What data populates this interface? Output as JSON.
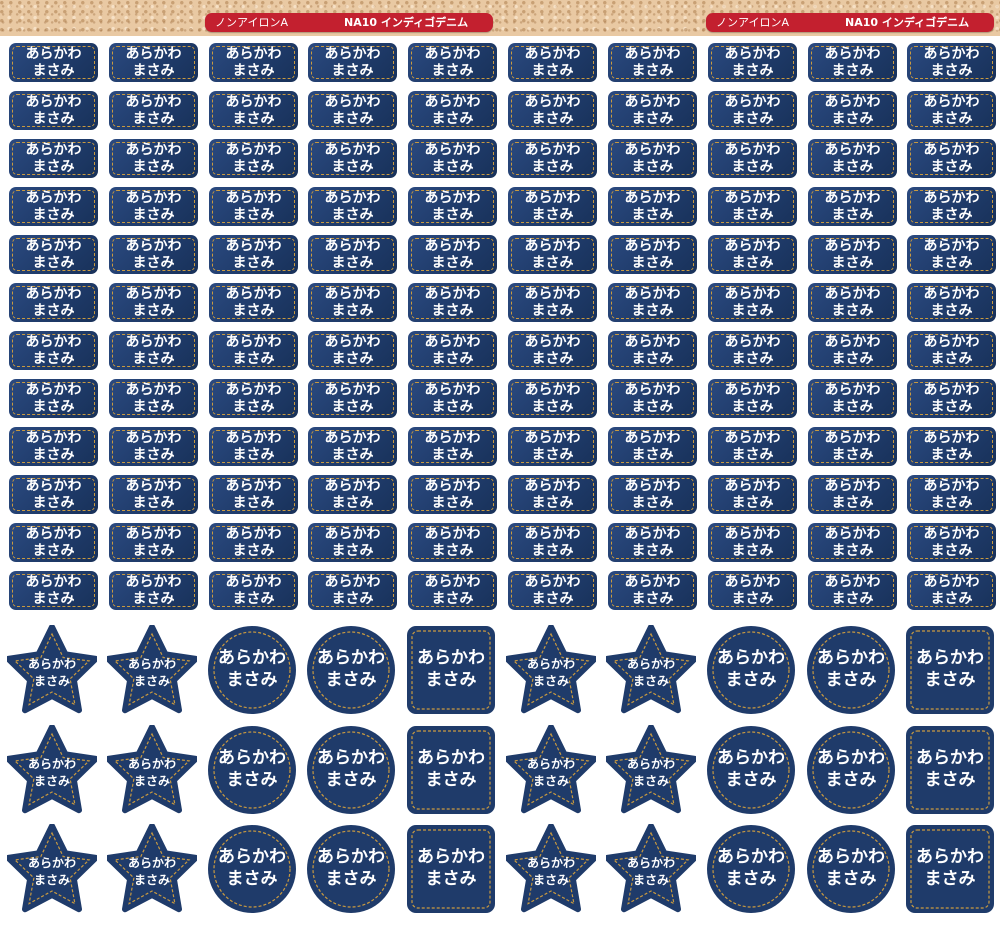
{
  "header": {
    "left": {
      "type_label": "ノンアイロンA",
      "product_label": "NA10 インディゴデニム"
    },
    "right": {
      "type_label": "ノンアイロンA",
      "product_label": "NA10 インディゴデニム"
    }
  },
  "label_text": {
    "line1": "あらかわ",
    "line2": "まさみ"
  },
  "colors": {
    "denim": "#1f3b6a",
    "stitch": "#c99a40",
    "header_red": "#c3202f"
  },
  "shape_rows": [
    [
      "star",
      "star",
      "circle",
      "circle",
      "square",
      "star",
      "star",
      "circle",
      "circle",
      "square"
    ],
    [
      "star",
      "star",
      "circle",
      "circle",
      "square",
      "star",
      "star",
      "circle",
      "circle",
      "square"
    ],
    [
      "star",
      "star",
      "circle",
      "circle",
      "square",
      "star",
      "star",
      "circle",
      "circle",
      "square"
    ]
  ]
}
